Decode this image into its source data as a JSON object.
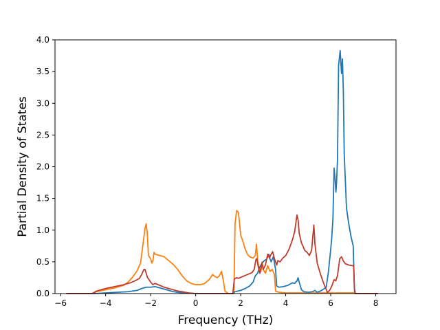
{
  "chart_data": {
    "type": "line",
    "title": "",
    "xlabel": "Frequency (THz)",
    "ylabel": "Partial Density of States",
    "xlim": [
      -6.25,
      8.9
    ],
    "ylim": [
      0.0,
      4.0
    ],
    "xticks": [
      -6,
      -4,
      -2,
      0,
      2,
      4,
      6,
      8
    ],
    "xtick_labels": [
      "−6",
      "−4",
      "−2",
      "0",
      "2",
      "4",
      "6",
      "8"
    ],
    "yticks": [
      0.0,
      0.5,
      1.0,
      1.5,
      2.0,
      2.5,
      3.0,
      3.5,
      4.0
    ],
    "ytick_labels": [
      "0.0",
      "0.5",
      "1.0",
      "1.5",
      "2.0",
      "2.5",
      "3.0",
      "3.5",
      "4.0"
    ],
    "grid": false,
    "legend": "none",
    "series": [
      {
        "color": "#ff7f0e",
        "points": [
          [
            -5.75,
            0.0
          ],
          [
            -4.6,
            0.0
          ],
          [
            -4.4,
            0.03
          ],
          [
            -4.0,
            0.06
          ],
          [
            -3.6,
            0.09
          ],
          [
            -3.2,
            0.13
          ],
          [
            -3.0,
            0.18
          ],
          [
            -2.8,
            0.26
          ],
          [
            -2.6,
            0.36
          ],
          [
            -2.45,
            0.48
          ],
          [
            -2.35,
            0.75
          ],
          [
            -2.25,
            1.03
          ],
          [
            -2.2,
            1.1
          ],
          [
            -2.15,
            0.95
          ],
          [
            -2.1,
            0.6
          ],
          [
            -2.0,
            0.55
          ],
          [
            -1.95,
            0.48
          ],
          [
            -1.9,
            0.52
          ],
          [
            -1.85,
            0.65
          ],
          [
            -1.8,
            0.62
          ],
          [
            -1.6,
            0.6
          ],
          [
            -1.4,
            0.58
          ],
          [
            -1.2,
            0.52
          ],
          [
            -1.0,
            0.46
          ],
          [
            -0.8,
            0.38
          ],
          [
            -0.6,
            0.28
          ],
          [
            -0.4,
            0.2
          ],
          [
            -0.2,
            0.16
          ],
          [
            0.0,
            0.14
          ],
          [
            0.2,
            0.14
          ],
          [
            0.4,
            0.16
          ],
          [
            0.6,
            0.22
          ],
          [
            0.75,
            0.3
          ],
          [
            0.85,
            0.27
          ],
          [
            0.95,
            0.25
          ],
          [
            1.05,
            0.28
          ],
          [
            1.15,
            0.35
          ],
          [
            1.22,
            0.22
          ],
          [
            1.3,
            0.04
          ],
          [
            1.45,
            0.0
          ],
          [
            1.7,
            0.0
          ],
          [
            1.75,
            1.1
          ],
          [
            1.82,
            1.31
          ],
          [
            1.9,
            1.28
          ],
          [
            2.0,
            0.92
          ],
          [
            2.1,
            0.82
          ],
          [
            2.2,
            0.7
          ],
          [
            2.3,
            0.62
          ],
          [
            2.4,
            0.58
          ],
          [
            2.55,
            0.56
          ],
          [
            2.65,
            0.6
          ],
          [
            2.7,
            0.78
          ],
          [
            2.76,
            0.5
          ],
          [
            2.82,
            0.4
          ],
          [
            2.9,
            0.35
          ],
          [
            2.95,
            0.5
          ],
          [
            3.0,
            0.38
          ],
          [
            3.1,
            0.32
          ],
          [
            3.2,
            0.44
          ],
          [
            3.3,
            0.35
          ],
          [
            3.4,
            0.38
          ],
          [
            3.5,
            0.3
          ],
          [
            3.55,
            0.04
          ],
          [
            3.7,
            0.02
          ],
          [
            4.0,
            0.01
          ],
          [
            5.0,
            0.01
          ],
          [
            7.0,
            0.01
          ],
          [
            7.05,
            0.0
          ],
          [
            8.1,
            0.0
          ]
        ]
      },
      {
        "color": "#1f77b4",
        "points": [
          [
            -5.75,
            0.0
          ],
          [
            -4.5,
            0.0
          ],
          [
            -4.0,
            0.01
          ],
          [
            -3.5,
            0.02
          ],
          [
            -3.0,
            0.03
          ],
          [
            -2.6,
            0.05
          ],
          [
            -2.4,
            0.08
          ],
          [
            -2.2,
            0.1
          ],
          [
            -2.0,
            0.1
          ],
          [
            -1.8,
            0.11
          ],
          [
            -1.6,
            0.09
          ],
          [
            -1.4,
            0.07
          ],
          [
            -1.2,
            0.05
          ],
          [
            -1.0,
            0.03
          ],
          [
            -0.8,
            0.02
          ],
          [
            -0.5,
            0.01
          ],
          [
            0.0,
            0.0
          ],
          [
            1.65,
            0.0
          ],
          [
            1.75,
            0.03
          ],
          [
            2.0,
            0.05
          ],
          [
            2.2,
            0.08
          ],
          [
            2.4,
            0.12
          ],
          [
            2.55,
            0.18
          ],
          [
            2.65,
            0.28
          ],
          [
            2.75,
            0.32
          ],
          [
            2.85,
            0.42
          ],
          [
            2.95,
            0.48
          ],
          [
            3.05,
            0.52
          ],
          [
            3.15,
            0.54
          ],
          [
            3.25,
            0.62
          ],
          [
            3.3,
            0.55
          ],
          [
            3.35,
            0.5
          ],
          [
            3.45,
            0.58
          ],
          [
            3.55,
            0.38
          ],
          [
            3.6,
            0.12
          ],
          [
            3.7,
            0.1
          ],
          [
            3.9,
            0.11
          ],
          [
            4.1,
            0.13
          ],
          [
            4.3,
            0.17
          ],
          [
            4.4,
            0.16
          ],
          [
            4.5,
            0.2
          ],
          [
            4.55,
            0.25
          ],
          [
            4.6,
            0.18
          ],
          [
            4.7,
            0.06
          ],
          [
            4.8,
            0.03
          ],
          [
            5.0,
            0.02
          ],
          [
            5.2,
            0.03
          ],
          [
            5.3,
            0.05
          ],
          [
            5.4,
            0.02
          ],
          [
            5.6,
            0.05
          ],
          [
            5.8,
            0.1
          ],
          [
            5.9,
            0.35
          ],
          [
            6.0,
            0.7
          ],
          [
            6.05,
            0.9
          ],
          [
            6.1,
            1.2
          ],
          [
            6.15,
            1.98
          ],
          [
            6.2,
            1.78
          ],
          [
            6.23,
            1.6
          ],
          [
            6.26,
            1.75
          ],
          [
            6.3,
            2.1
          ],
          [
            6.35,
            3.6
          ],
          [
            6.42,
            3.83
          ],
          [
            6.48,
            3.47
          ],
          [
            6.52,
            3.7
          ],
          [
            6.56,
            3.2
          ],
          [
            6.6,
            2.2
          ],
          [
            6.7,
            1.35
          ],
          [
            6.8,
            1.1
          ],
          [
            6.9,
            0.9
          ],
          [
            7.0,
            0.75
          ],
          [
            7.05,
            0.08
          ],
          [
            7.1,
            0.0
          ],
          [
            8.1,
            0.0
          ]
        ]
      },
      {
        "color": "#c0392b",
        "points": [
          [
            -5.75,
            0.0
          ],
          [
            -4.6,
            0.0
          ],
          [
            -4.4,
            0.04
          ],
          [
            -4.0,
            0.08
          ],
          [
            -3.6,
            0.11
          ],
          [
            -3.2,
            0.14
          ],
          [
            -2.9,
            0.17
          ],
          [
            -2.7,
            0.2
          ],
          [
            -2.5,
            0.24
          ],
          [
            -2.4,
            0.3
          ],
          [
            -2.3,
            0.38
          ],
          [
            -2.25,
            0.38
          ],
          [
            -2.15,
            0.26
          ],
          [
            -2.0,
            0.18
          ],
          [
            -1.9,
            0.14
          ],
          [
            -1.8,
            0.16
          ],
          [
            -1.6,
            0.13
          ],
          [
            -1.4,
            0.1
          ],
          [
            -1.2,
            0.08
          ],
          [
            -1.0,
            0.06
          ],
          [
            -0.8,
            0.04
          ],
          [
            -0.6,
            0.03
          ],
          [
            -0.3,
            0.01
          ],
          [
            0.0,
            0.0
          ],
          [
            1.65,
            0.0
          ],
          [
            1.72,
            0.23
          ],
          [
            1.82,
            0.25
          ],
          [
            1.9,
            0.24
          ],
          [
            2.1,
            0.27
          ],
          [
            2.3,
            0.3
          ],
          [
            2.5,
            0.33
          ],
          [
            2.6,
            0.38
          ],
          [
            2.68,
            0.54
          ],
          [
            2.72,
            0.55
          ],
          [
            2.78,
            0.42
          ],
          [
            2.85,
            0.32
          ],
          [
            2.95,
            0.48
          ],
          [
            3.0,
            0.38
          ],
          [
            3.1,
            0.45
          ],
          [
            3.2,
            0.62
          ],
          [
            3.28,
            0.56
          ],
          [
            3.32,
            0.6
          ],
          [
            3.42,
            0.66
          ],
          [
            3.5,
            0.55
          ],
          [
            3.6,
            0.45
          ],
          [
            3.65,
            0.52
          ],
          [
            3.75,
            0.5
          ],
          [
            3.85,
            0.55
          ],
          [
            4.0,
            0.6
          ],
          [
            4.15,
            0.7
          ],
          [
            4.3,
            0.85
          ],
          [
            4.4,
            0.98
          ],
          [
            4.5,
            1.24
          ],
          [
            4.55,
            1.16
          ],
          [
            4.6,
            0.95
          ],
          [
            4.7,
            0.8
          ],
          [
            4.85,
            0.68
          ],
          [
            4.95,
            0.65
          ],
          [
            5.05,
            0.6
          ],
          [
            5.15,
            0.68
          ],
          [
            5.25,
            1.08
          ],
          [
            5.3,
            0.78
          ],
          [
            5.4,
            0.48
          ],
          [
            5.55,
            0.3
          ],
          [
            5.7,
            0.15
          ],
          [
            5.85,
            0.02
          ],
          [
            5.95,
            0.05
          ],
          [
            6.05,
            0.12
          ],
          [
            6.15,
            0.22
          ],
          [
            6.22,
            0.2
          ],
          [
            6.3,
            0.28
          ],
          [
            6.4,
            0.55
          ],
          [
            6.48,
            0.58
          ],
          [
            6.55,
            0.52
          ],
          [
            6.65,
            0.47
          ],
          [
            6.8,
            0.45
          ],
          [
            6.95,
            0.44
          ],
          [
            7.02,
            0.44
          ],
          [
            7.06,
            0.02
          ],
          [
            7.1,
            0.0
          ],
          [
            8.1,
            0.0
          ]
        ]
      }
    ]
  }
}
